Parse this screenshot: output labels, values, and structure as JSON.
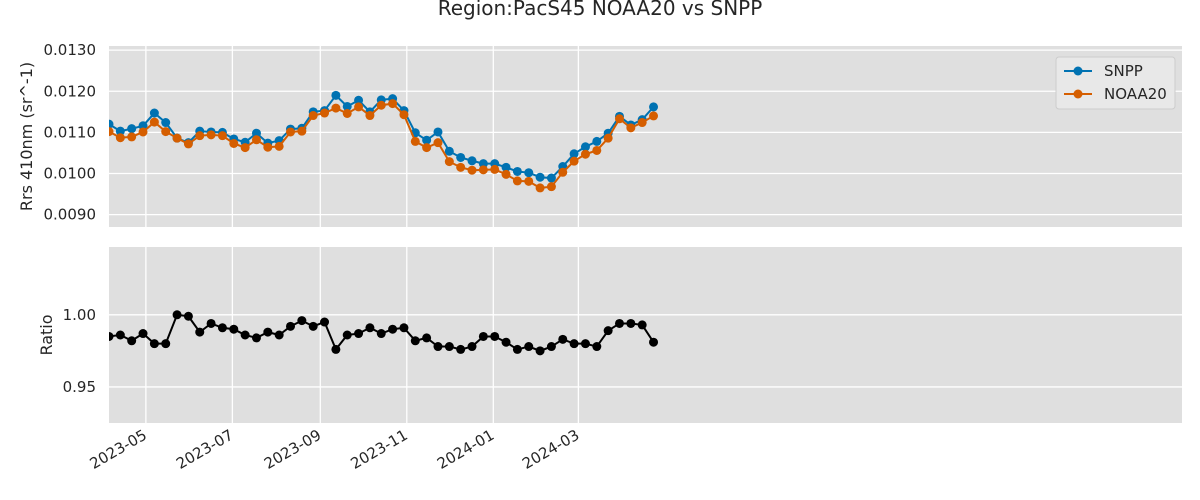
{
  "chart_data": {
    "type": "line",
    "title": "Region:PacS45 NOAA20 vs SNPP",
    "x": [
      "2023-04-05",
      "2023-04-13",
      "2023-04-21",
      "2023-04-29",
      "2023-05-07",
      "2023-05-15",
      "2023-05-23",
      "2023-05-31",
      "2023-06-08",
      "2023-06-16",
      "2023-06-24",
      "2023-07-02",
      "2023-07-10",
      "2023-07-18",
      "2023-07-26",
      "2023-08-03",
      "2023-08-11",
      "2023-08-19",
      "2023-08-27",
      "2023-09-04",
      "2023-09-12",
      "2023-09-20",
      "2023-09-28",
      "2023-10-06",
      "2023-10-14",
      "2023-10-22",
      "2023-10-30",
      "2023-11-07",
      "2023-11-15",
      "2023-11-23",
      "2023-12-01",
      "2023-12-09",
      "2023-12-17",
      "2023-12-25",
      "2024-01-02",
      "2024-01-10",
      "2024-01-18",
      "2024-01-26",
      "2024-02-03",
      "2024-02-11",
      "2024-02-19",
      "2024-02-27",
      "2024-03-06",
      "2024-03-14",
      "2024-03-22",
      "2024-03-30",
      "2024-04-07",
      "2024-04-15",
      "2024-04-23"
    ],
    "xticks": [
      "2023-05",
      "2023-07",
      "2023-09",
      "2023-11",
      "2024-01",
      "2024-03"
    ],
    "top": {
      "ylabel": "Rrs 410nm (sr^-1)",
      "ylim": [
        0.0087,
        0.0131
      ],
      "yticks": [
        "0.0090",
        "0.0100",
        "0.0110",
        "0.0120",
        "0.0130"
      ],
      "legend_position": "top-right",
      "series": [
        {
          "name": "SNPP",
          "color": "#0072b2",
          "values": [
            0.0112,
            0.01103,
            0.01109,
            0.01116,
            0.01147,
            0.01124,
            0.01086,
            0.01075,
            0.01103,
            0.01101,
            0.011,
            0.01084,
            0.01076,
            0.01098,
            0.01074,
            0.0108,
            0.01108,
            0.0111,
            0.0115,
            0.01153,
            0.0119,
            0.01163,
            0.01178,
            0.0115,
            0.01179,
            0.01182,
            0.01153,
            0.01099,
            0.01081,
            0.01101,
            0.01054,
            0.01039,
            0.01031,
            0.01024,
            0.01024,
            0.01015,
            0.01005,
            0.01002,
            0.00991,
            0.00989,
            0.01017,
            0.01048,
            0.01065,
            0.01078,
            0.01098,
            0.01139,
            0.01118,
            0.01131,
            0.01162
          ]
        },
        {
          "name": "NOAA20",
          "color": "#d55e00",
          "values": [
            0.01102,
            0.01087,
            0.01089,
            0.01101,
            0.01125,
            0.01102,
            0.01086,
            0.01072,
            0.01092,
            0.01094,
            0.01092,
            0.01073,
            0.01063,
            0.01082,
            0.01064,
            0.01066,
            0.01101,
            0.01103,
            0.01141,
            0.01147,
            0.01159,
            0.01146,
            0.01162,
            0.01141,
            0.01166,
            0.0117,
            0.01143,
            0.01078,
            0.01063,
            0.01075,
            0.01029,
            0.01015,
            0.01008,
            0.01009,
            0.0101,
            0.00998,
            0.00982,
            0.00981,
            0.00965,
            0.00968,
            0.01003,
            0.0103,
            0.01047,
            0.01056,
            0.01086,
            0.01133,
            0.01111,
            0.01124,
            0.0114
          ]
        }
      ]
    },
    "bottom": {
      "ylabel": "Ratio",
      "ylim": [
        0.925,
        1.047
      ],
      "yticks": [
        "0.95",
        "1.00"
      ],
      "series": [
        {
          "name": "",
          "color": "#000000",
          "values": [
            0.985,
            0.986,
            0.982,
            0.987,
            0.98,
            0.98,
            1.0,
            0.999,
            0.988,
            0.994,
            0.991,
            0.99,
            0.986,
            0.984,
            0.988,
            0.986,
            0.992,
            0.996,
            0.992,
            0.995,
            0.976,
            0.986,
            0.987,
            0.991,
            0.987,
            0.99,
            0.991,
            0.982,
            0.984,
            0.978,
            0.978,
            0.976,
            0.978,
            0.985,
            0.985,
            0.981,
            0.976,
            0.978,
            0.975,
            0.978,
            0.983,
            0.98,
            0.98,
            0.978,
            0.989,
            0.994,
            0.994,
            0.993,
            0.981
          ]
        }
      ]
    },
    "grid": true
  }
}
